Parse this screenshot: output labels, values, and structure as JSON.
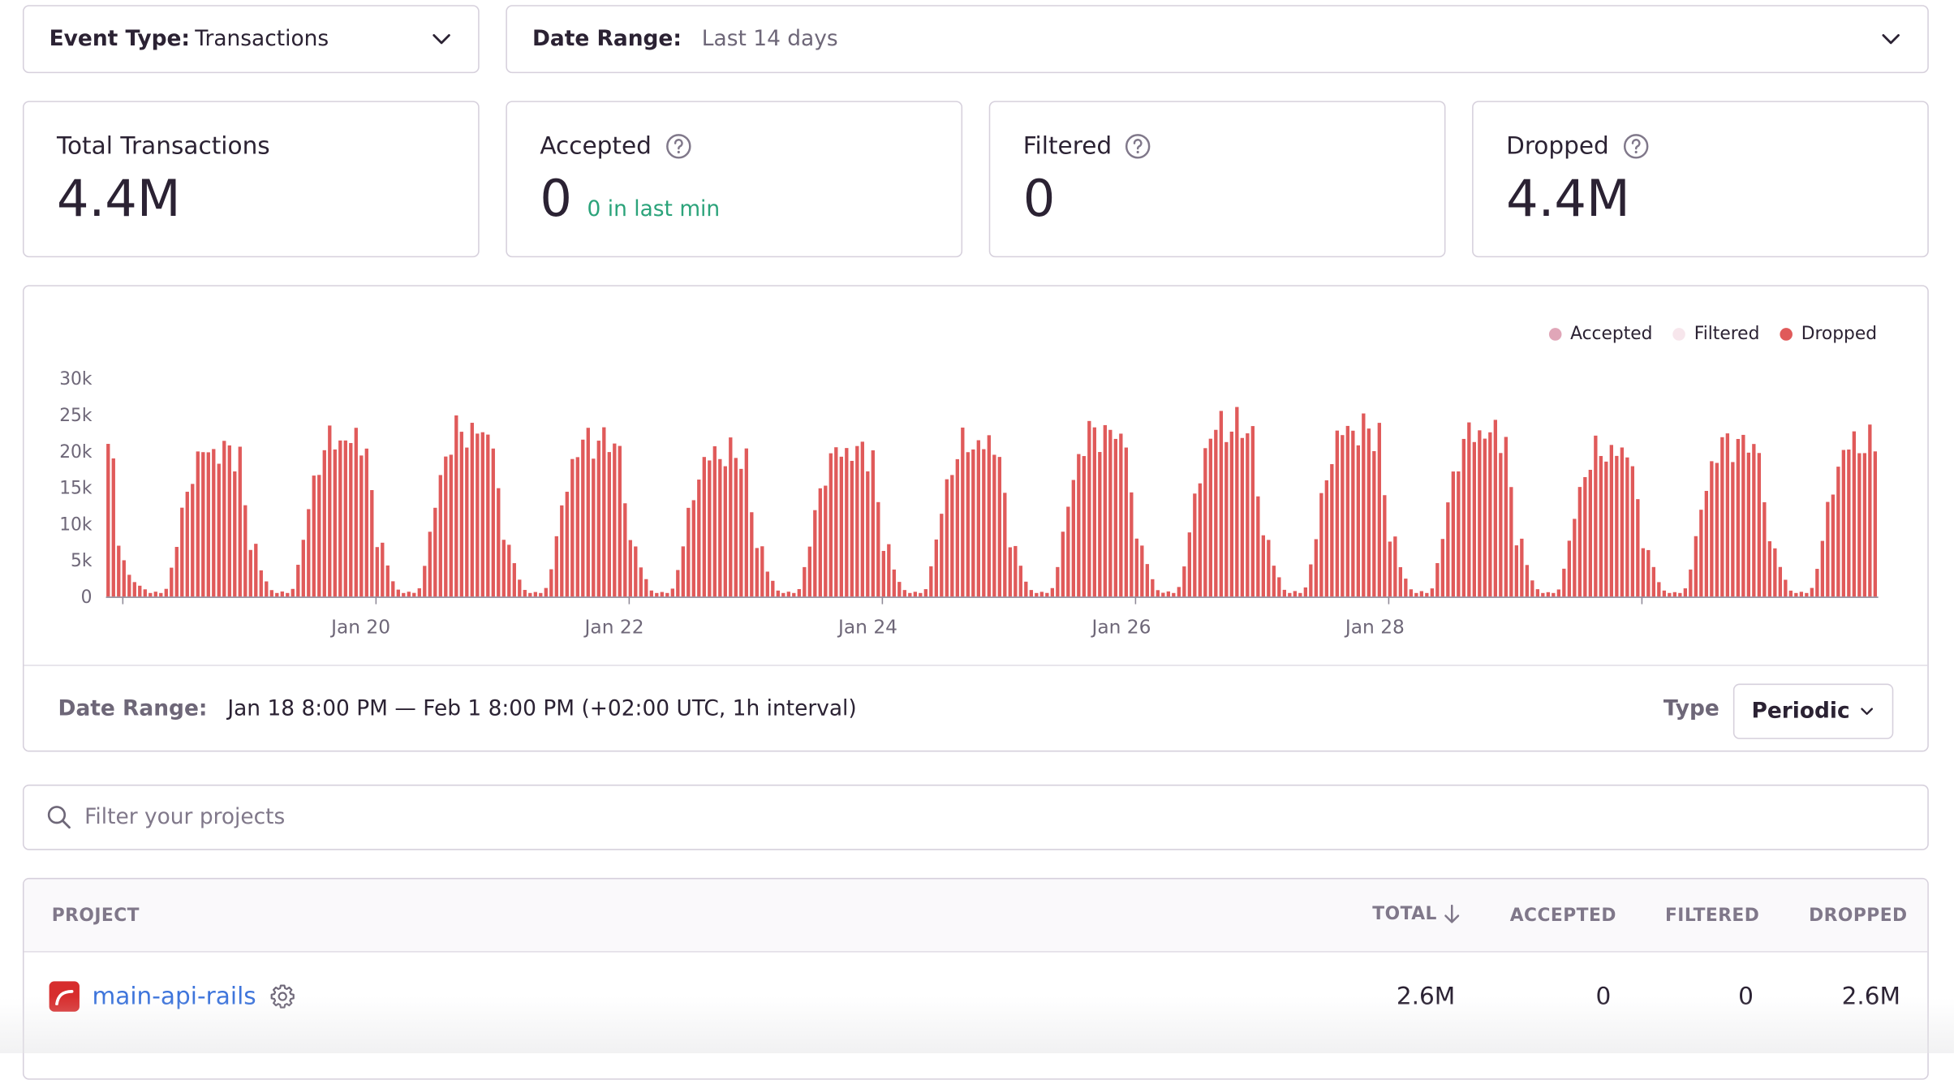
{
  "filters": {
    "event_type_label": "Event Type:",
    "event_type_value": "Transactions",
    "date_range_label": "Date Range:",
    "date_range_value": "Last 14 days"
  },
  "stats": [
    {
      "title": "Total Transactions",
      "value": "4.4M",
      "sub": "",
      "help": false
    },
    {
      "title": "Accepted",
      "value": "0",
      "sub": "0 in last min",
      "help": true
    },
    {
      "title": "Filtered",
      "value": "0",
      "sub": "",
      "help": true
    },
    {
      "title": "Dropped",
      "value": "4.4M",
      "sub": "",
      "help": true
    }
  ],
  "chart_footer": {
    "date_range_label": "Date Range:",
    "date_range_value": "Jan 18 8:00 PM — Feb 1 8:00 PM (+02:00 UTC, 1h interval)",
    "type_label": "Type",
    "type_value": "Periodic"
  },
  "colors": {
    "accepted": "#e0a6b8",
    "filtered": "#f7e6ec",
    "dropped": "#e05a5a",
    "success_text": "#2ba37a",
    "link": "#3d74db"
  },
  "chart_data": {
    "type": "bar",
    "interval": "1h",
    "legend": [
      "Accepted",
      "Filtered",
      "Dropped"
    ],
    "legend_position": "top-right",
    "yticks": [
      "0",
      "5k",
      "10k",
      "15k",
      "20k",
      "25k",
      "30k"
    ],
    "ylim": [
      0,
      30000
    ],
    "xticks": [
      "Jan 20",
      "Jan 22",
      "Jan 24",
      "Jan 26",
      "Jan 28"
    ],
    "series": [
      {
        "name": "Accepted",
        "values_note": "all 0"
      },
      {
        "name": "Filtered",
        "values_note": "all 0"
      },
      {
        "name": "Dropped",
        "daily_peaks": [
          21800,
          22700,
          24500,
          25700,
          24300,
          22200,
          22700,
          23800,
          25500,
          26600,
          26000,
          25600,
          22600,
          23900
        ],
        "night_min": 500,
        "first_hours": [
          21000,
          19000,
          7000,
          5000,
          3000,
          2000,
          1500,
          1000
        ]
      }
    ]
  },
  "search": {
    "placeholder": "Filter your projects"
  },
  "table": {
    "columns": [
      "PROJECT",
      "TOTAL",
      "ACCEPTED",
      "FILTERED",
      "DROPPED"
    ],
    "rows": [
      {
        "project": "main-api-rails",
        "total": "2.6M",
        "accepted": "0",
        "filtered": "0",
        "dropped": "2.6M"
      }
    ]
  }
}
